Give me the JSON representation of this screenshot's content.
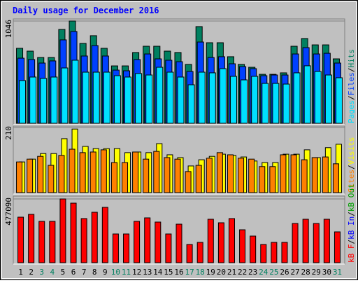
{
  "legend_separator": "/",
  "chart_data": [
    {
      "type": "bar",
      "title": "Daily usage for December 2016",
      "ylim": [
        0,
        1046
      ],
      "yticks": [
        1046
      ],
      "series": [
        {
          "name": "Hits",
          "color": "#008060",
          "values": [
            767,
            738,
            673,
            673,
            960,
            1046,
            817,
            896,
            767,
            587,
            587,
            724,
            788,
            788,
            738,
            724,
            602,
            989,
            824,
            824,
            681,
            602,
            573,
            501,
            501,
            516,
            788,
            867,
            802,
            802,
            659
          ]
        },
        {
          "name": "Files",
          "color": "#0040ff",
          "values": [
            666,
            652,
            616,
            638,
            853,
            939,
            688,
            795,
            688,
            544,
            537,
            652,
            709,
            659,
            645,
            630,
            530,
            831,
            673,
            681,
            609,
            580,
            559,
            487,
            494,
            494,
            709,
            774,
            709,
            716,
            616
          ]
        },
        {
          "name": "Pages",
          "color": "#00e0ff",
          "values": [
            437,
            473,
            459,
            473,
            566,
            645,
            523,
            523,
            523,
            487,
            473,
            509,
            494,
            573,
            523,
            473,
            394,
            523,
            516,
            559,
            480,
            444,
            480,
            408,
            408,
            401,
            516,
            588,
            530,
            494,
            466
          ]
        }
      ]
    },
    {
      "type": "bar",
      "ylim": [
        0,
        210
      ],
      "yticks": [
        210
      ],
      "series": [
        {
          "name": "Visits",
          "color": "#ffff00",
          "values": [
            99,
            108,
            126,
            126,
            174,
            205,
            149,
            142,
            142,
            142,
            129,
            131,
            129,
            158,
            122,
            113,
            86,
            106,
            117,
            124,
            120,
            115,
            102,
            97,
            97,
            124,
            124,
            138,
            113,
            145,
            156
          ]
        },
        {
          "name": "Sites",
          "color": "#ff8000",
          "values": [
            99,
            108,
            117,
            88,
            120,
            140,
            129,
            131,
            138,
            97,
            97,
            131,
            108,
            133,
            113,
            108,
            68,
            88,
            111,
            129,
            122,
            111,
            108,
            84,
            84,
            122,
            122,
            106,
            113,
            115,
            93
          ]
        }
      ]
    },
    {
      "type": "bar",
      "ylim": [
        0,
        477090
      ],
      "yticks": [
        477090
      ],
      "categories": [
        "1",
        "2",
        "3",
        "4",
        "5",
        "6",
        "7",
        "8",
        "9",
        "10",
        "11",
        "12",
        "13",
        "14",
        "15",
        "16",
        "17",
        "18",
        "19",
        "20",
        "21",
        "22",
        "23",
        "24",
        "25",
        "26",
        "27",
        "28",
        "29",
        "30",
        "31"
      ],
      "category_colors": [
        "#000000",
        "#000000",
        "#008060",
        "#008060",
        "#000000",
        "#000000",
        "#000000",
        "#000000",
        "#000000",
        "#008060",
        "#008060",
        "#000000",
        "#000000",
        "#000000",
        "#000000",
        "#000000",
        "#008060",
        "#008060",
        "#000000",
        "#000000",
        "#000000",
        "#000000",
        "#000000",
        "#008060",
        "#008060",
        "#000000",
        "#000000",
        "#000000",
        "#000000",
        "#000000",
        "#008060"
      ],
      "series": [
        {
          "name": "kB F",
          "color": "#ff0000",
          "values": [
            340776,
            361746,
            309319,
            309319,
            477090,
            445631,
            330290,
            377477,
            414177,
            214953,
            214953,
            309319,
            335533,
            304076,
            214953,
            288348,
            136310,
            152038,
            325047,
            298833,
            330290,
            246407,
            199222,
            136310,
            152038,
            152038,
            293591,
            325047,
            293591,
            325047,
            230678
          ]
        }
      ],
      "extra_legend": [
        {
          "name": "kB In",
          "color": "#0000ff"
        },
        {
          "name": "kB Out",
          "color": "#00a000"
        }
      ]
    }
  ]
}
